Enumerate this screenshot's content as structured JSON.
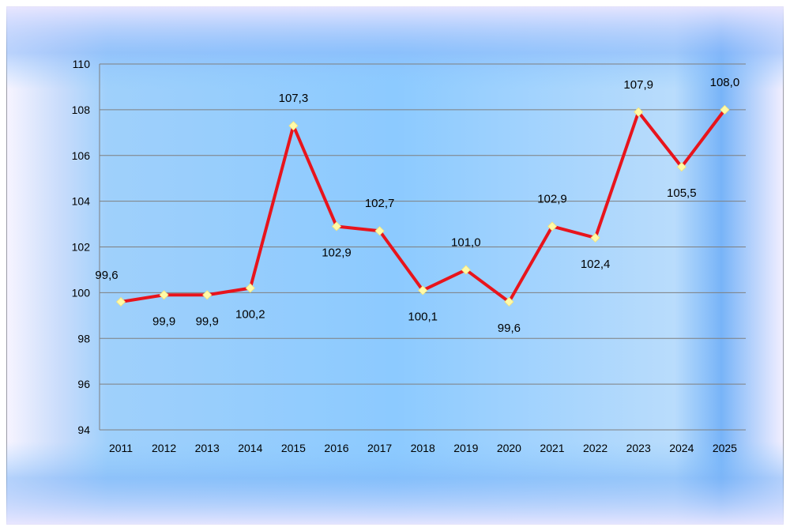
{
  "chart_data": {
    "type": "line",
    "title": "",
    "xlabel": "",
    "ylabel": "",
    "categories": [
      "2011",
      "2012",
      "2013",
      "2014",
      "2015",
      "2016",
      "2017",
      "2018",
      "2019",
      "2020",
      "2021",
      "2022",
      "2023",
      "2024",
      "2025"
    ],
    "series": [
      {
        "values": [
          99.6,
          99.9,
          99.9,
          100.2,
          107.3,
          102.9,
          102.7,
          100.1,
          101.0,
          99.6,
          102.9,
          102.4,
          107.9,
          105.5,
          108.0
        ],
        "labels": [
          "99,6",
          "99,9",
          "99,9",
          "100,2",
          "107,3",
          "102,9",
          "102,7",
          "100,1",
          "101,0",
          "99,6",
          "102,9",
          "102,4",
          "107,9",
          "105,5",
          "108,0"
        ],
        "label_side": [
          "above",
          "below",
          "below",
          "below",
          "above",
          "below",
          "above",
          "below",
          "above",
          "below",
          "above",
          "below",
          "above",
          "below",
          "above"
        ],
        "color": "#e8141c",
        "marker_color": "#fffaa8"
      }
    ],
    "ylim": [
      94,
      110
    ],
    "yticks": [
      "94",
      "96",
      "98",
      "100",
      "102",
      "104",
      "106",
      "108",
      "110"
    ],
    "grid": true,
    "legend": "none"
  },
  "colors": {
    "frame_outer": "#ffffff",
    "frame_inner": "#dfeaff",
    "plot_blue": "#8bc7fb",
    "gridline": "#7f7f7f",
    "text": "#000000"
  }
}
